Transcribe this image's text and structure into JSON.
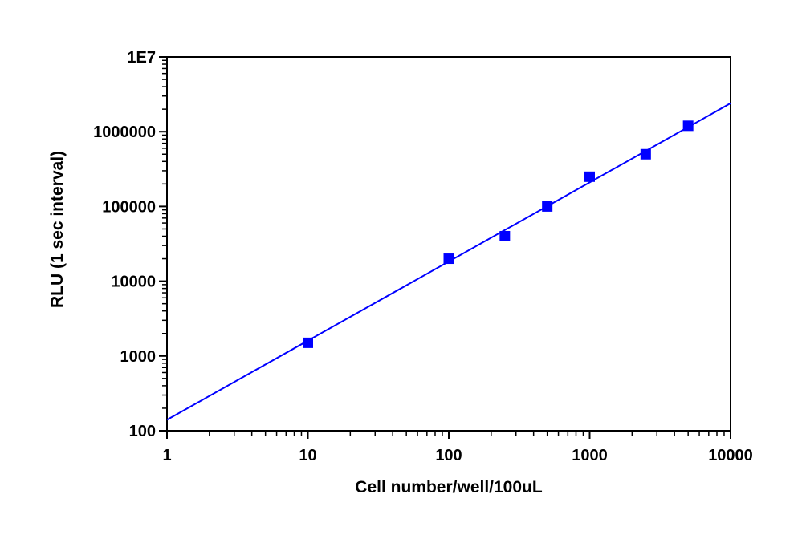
{
  "chart_data": {
    "type": "scatter",
    "title": "",
    "xlabel": "Cell number/well/100uL",
    "ylabel": "RLU (1 sec interval)",
    "xscale": "log",
    "yscale": "log",
    "xlim": [
      1,
      10000
    ],
    "ylim": [
      100,
      10000000
    ],
    "grid": false,
    "legend": null,
    "x_tick_labels": [
      "1",
      "10",
      "100",
      "1000",
      "10000"
    ],
    "x_ticks": [
      1,
      10,
      100,
      1000,
      10000
    ],
    "y_tick_labels": [
      "100",
      "1000",
      "10000",
      "100000",
      "1000000",
      "1E7"
    ],
    "y_ticks": [
      100,
      1000,
      10000,
      100000,
      1000000,
      10000000
    ],
    "series": [
      {
        "name": "RLU",
        "marker": "square",
        "color": "#0000ff",
        "x": [
          10,
          100,
          250,
          500,
          1000,
          2500,
          5000
        ],
        "y": [
          1500,
          20000,
          40000,
          100000,
          250000,
          500000,
          1200000
        ]
      },
      {
        "name": "Linear fit",
        "style": "line",
        "color": "#0000ff",
        "x": [
          1,
          10000
        ],
        "y": [
          140,
          2400000
        ]
      }
    ]
  },
  "colors": {
    "series": "#0000ff",
    "axis": "#000000"
  }
}
